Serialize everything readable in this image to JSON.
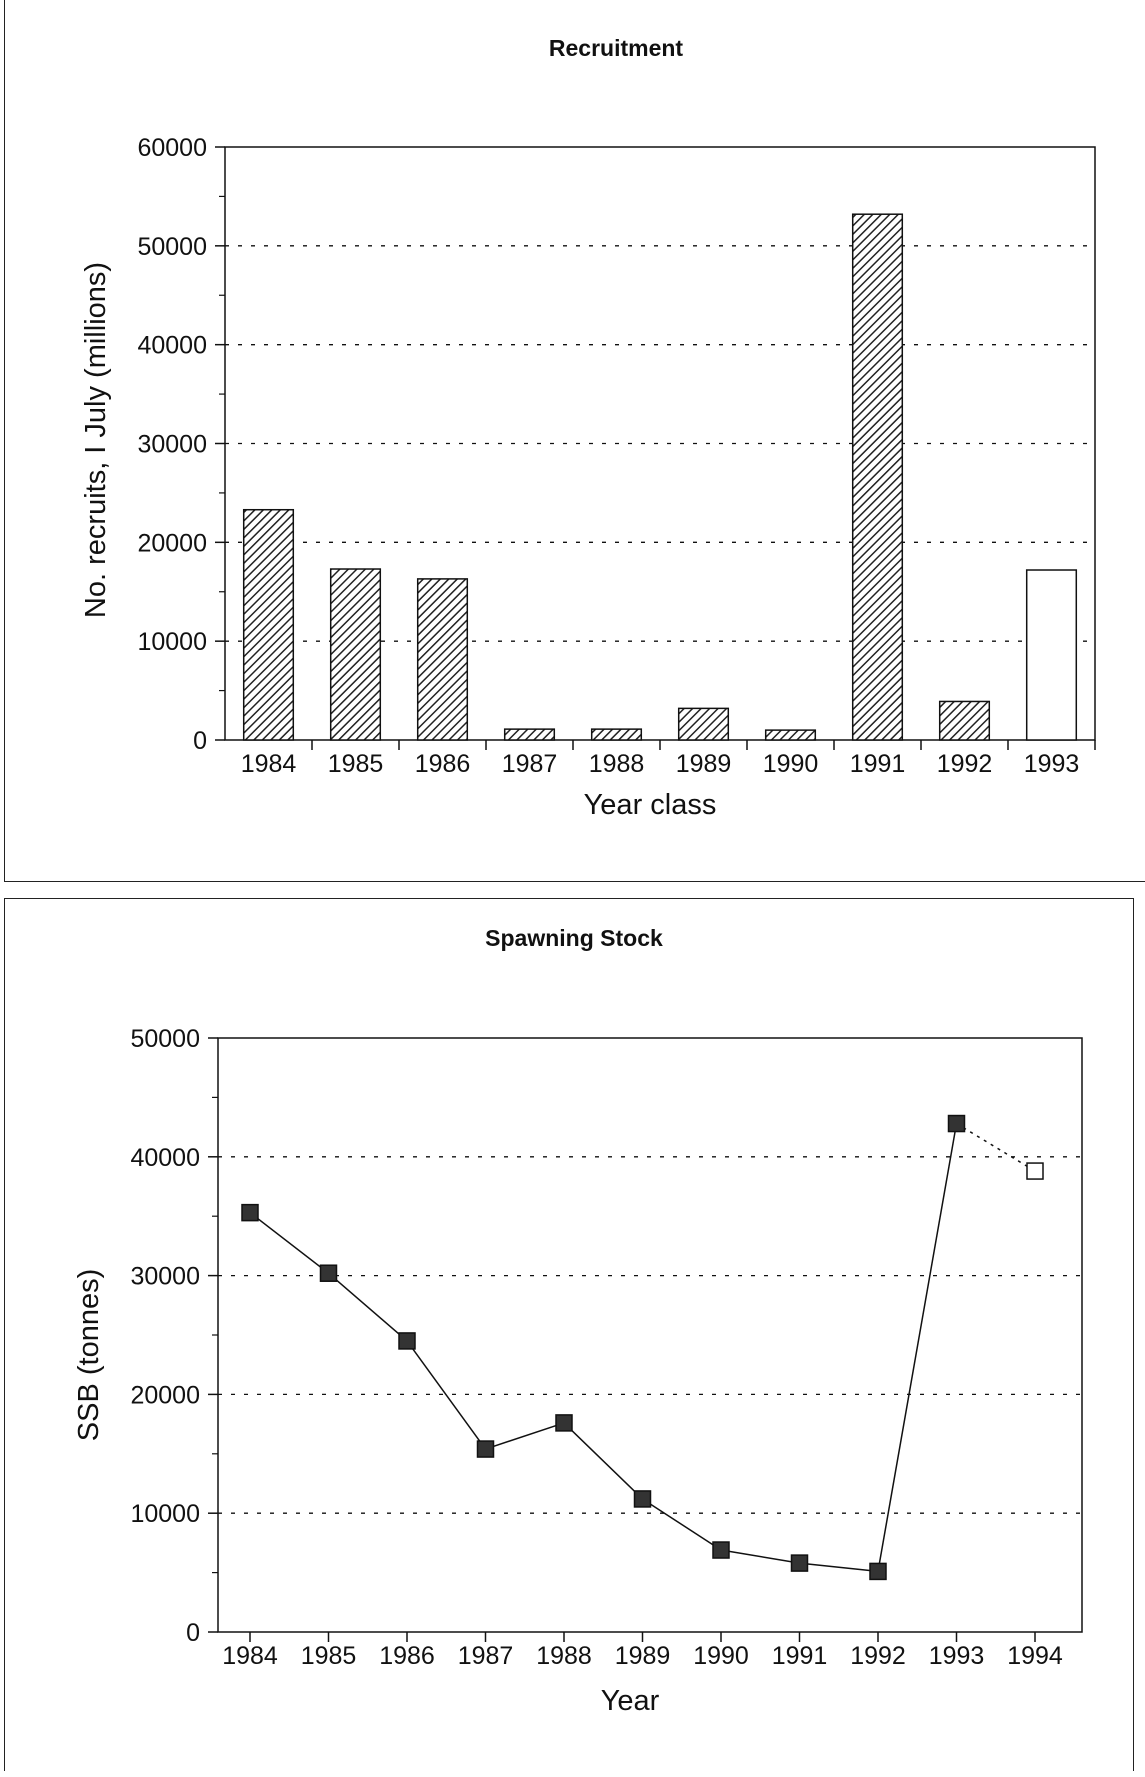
{
  "chart_data": [
    {
      "type": "bar",
      "title": "Recruitment",
      "xlabel": "Year class",
      "ylabel": "No. recruits, I July (millions)",
      "categories": [
        "1984",
        "1985",
        "1986",
        "1987",
        "1988",
        "1989",
        "1990",
        "1991",
        "1992",
        "1993"
      ],
      "series": [
        {
          "values": [
            23300,
            17300,
            16300,
            1100,
            1100,
            3200,
            1000,
            53200,
            3900,
            17200
          ]
        }
      ],
      "estimated": [
        "1993"
      ],
      "ylim": [
        0,
        60000
      ],
      "yticks": [
        "0",
        "10000",
        "20000",
        "30000",
        "40000",
        "50000",
        "60000"
      ],
      "grid": "dashed horizontal",
      "colors": {
        "bar_fill": "hatched",
        "estimate_fill": "#ffffff",
        "line": "#111111"
      }
    },
    {
      "type": "line",
      "title": "Spawning Stock",
      "xlabel": "Year",
      "ylabel": "SSB (tonnes)",
      "x": [
        "1984",
        "1985",
        "1986",
        "1987",
        "1988",
        "1989",
        "1990",
        "1991",
        "1992",
        "1993",
        "1994"
      ],
      "series": [
        {
          "values": [
            35300,
            30200,
            24500,
            15400,
            17600,
            11200,
            6900,
            5800,
            5100,
            42800,
            38800
          ]
        }
      ],
      "estimated": [
        "1994"
      ],
      "ylim": [
        0,
        50000
      ],
      "yticks": [
        "0",
        "10000",
        "20000",
        "30000",
        "40000",
        "50000"
      ],
      "grid": "dashed horizontal",
      "colors": {
        "marker_fill": "#333333",
        "estimate_fill": "#ffffff",
        "line": "#111111"
      }
    }
  ]
}
